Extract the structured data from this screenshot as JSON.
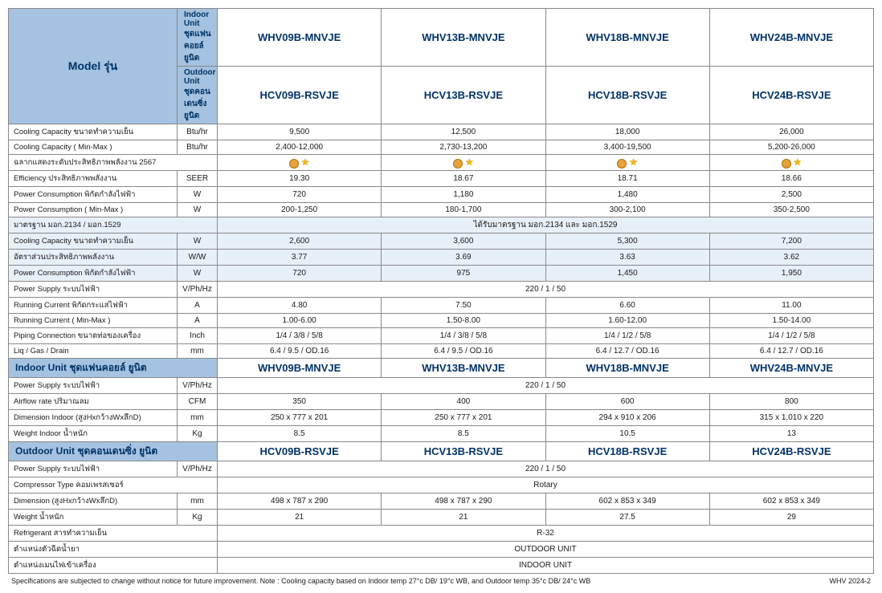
{
  "colors": {
    "header_bg": "#a5c3e0",
    "header_text": "#003366",
    "border": "#888888",
    "tint": "#e8f0f7"
  },
  "model_label": "Model รุ่น",
  "indoor_hdr_label": "Indoor Unit ชุดแฟนคอยล์ ยูนิต",
  "outdoor_hdr_label": "Outdoor Unit ชุดคอนเดนซิ่ง ยูนิต",
  "models_indoor": [
    "WHV09B-MNVJE",
    "WHV13B-MNVJE",
    "WHV18B-MNVJE",
    "WHV24B-MNVJE"
  ],
  "models_outdoor": [
    "HCV09B-RSVJE",
    "HCV13B-RSVJE",
    "HCV18B-RSVJE",
    "HCV24B-RSVJE"
  ],
  "rows_main": [
    {
      "l": "Cooling Capacity ขนาดทำความเย็น",
      "u": "Btu/hr",
      "v": [
        "9,500",
        "12,500",
        "18,000",
        "26,000"
      ]
    },
    {
      "l": "Cooling Capacity ( Min-Max )",
      "u": "Btu/hr",
      "v": [
        "2,400-12,000",
        "2,730-13,200",
        "3,400-19,500",
        "5,200-26,000"
      ]
    },
    {
      "l": "ฉลากแสดงระดับประสิทธิภาพพลังงาน 2567",
      "u": "",
      "v": [
        "★",
        "★",
        "★",
        "★"
      ],
      "special": "stars"
    },
    {
      "l": "Efficiency ประสิทธิภาพพลังงาน",
      "u": "SEER",
      "v": [
        "19.30",
        "18.67",
        "18.71",
        "18.66"
      ]
    },
    {
      "l": "Power Consumption พิกัดกำลังไฟฟ้า",
      "u": "W",
      "v": [
        "720",
        "1,180",
        "1,480",
        "2,500"
      ]
    },
    {
      "l": "Power Consumption ( Min-Max )",
      "u": "W",
      "v": [
        "200-1,250",
        "180-1,700",
        "300-2,100",
        "350-2,500"
      ]
    },
    {
      "l": "มาตรฐาน มอก.2134 / มอก.1529",
      "u": "",
      "merged": "ได้รับมาตรฐาน มอก.2134 และ มอก.1529",
      "tint": true
    },
    {
      "l": "Cooling Capacity  ขนาดทำความเย็น",
      "u": "W",
      "v": [
        "2,600",
        "3,600",
        "5,300",
        "7,200"
      ],
      "tint": true
    },
    {
      "l": "อัตราส่วนประสิทธิภาพพลังงาน",
      "u": "W/W",
      "v": [
        "3.77",
        "3.69",
        "3.63",
        "3.62"
      ],
      "tint": true
    },
    {
      "l": "Power Consumption พิกัดกำลังไฟฟ้า",
      "u": "W",
      "v": [
        "720",
        "975",
        "1,450",
        "1,950"
      ],
      "tint": true
    },
    {
      "l": "Power Supply ระบบไฟฟ้า",
      "u": "V/Ph/Hz",
      "merged": "220 / 1 / 50"
    },
    {
      "l": "Running Current  พิกัดกระแสไฟฟ้า",
      "u": "A",
      "v": [
        "4.80",
        "7.50",
        "6.60",
        "11.00"
      ]
    },
    {
      "l": "Running Current  ( Min-Max )",
      "u": "A",
      "v": [
        "1.00-6.00",
        "1.50-8.00",
        "1.60-12.00",
        "1.50-14.00"
      ]
    },
    {
      "l": "Piping Connection  ขนาดท่อของเครื่อง",
      "u": "Inch",
      "v": [
        "1/4 / 3/8 / 5/8",
        "1/4 / 3/8 / 5/8",
        "1/4 / 1/2 / 5/8",
        "1/4 / 1/2 / 5/8"
      ]
    },
    {
      "l": "Liq / Gas / Drain",
      "u": "mm",
      "v": [
        "6.4 / 9.5 / OD.16",
        "6.4 / 9.5 / OD.16",
        "6.4 / 12.7 / OD.16",
        "6.4 / 12.7 / OD.16"
      ]
    }
  ],
  "indoor_section_label": "Indoor Unit ชุดแฟนคอยล์ ยูนิต",
  "rows_indoor": [
    {
      "l": "Power Supply  ระบบไฟฟ้า",
      "u": "V/Ph/Hz",
      "merged": "220 / 1 / 50"
    },
    {
      "l": "Airflow rate  ปริมาณลม",
      "u": "CFM",
      "v": [
        "350",
        "400",
        "600",
        "800"
      ]
    },
    {
      "l": "Dimension Indoor (สูงHxกว้างWxลึกD)",
      "u": "mm",
      "v": [
        "250 x 777 x 201",
        "250 x 777 x 201",
        "294 x 910 x 206",
        "315 x 1,010 x 220"
      ]
    },
    {
      "l": "Weight Indoor น้ำหนัก",
      "u": "Kg",
      "v": [
        "8.5",
        "8.5",
        "10.5",
        "13"
      ]
    }
  ],
  "outdoor_section_label": "Outdoor Unit ชุดคอนเดนซิ่ง ยูนิต",
  "rows_outdoor": [
    {
      "l": "Power Supply ระบบไฟฟ้า",
      "u": "V/Ph/Hz",
      "merged": "220 / 1 / 50"
    },
    {
      "l": "Compressor Type คอมเพรสเซอร์",
      "u": "",
      "merged": "Rotary"
    },
    {
      "l": "Dimension (สูงHxกว้างWxลึกD)",
      "u": "mm",
      "v": [
        "498 x 787 x 290",
        "498 x 787 x 290",
        "602 x 853 x 349",
        "602 x 853 x 349"
      ]
    },
    {
      "l": "Weight  น้ำหนัก",
      "u": "Kg",
      "v": [
        "21",
        "21",
        "27.5",
        "29"
      ]
    },
    {
      "l": "Refrigerant สารทำความเย็น",
      "u": "",
      "merged": "R-32"
    },
    {
      "l": "ตำแหน่งตัวฉีดน้ำยา",
      "u": "",
      "merged": "OUTDOOR UNIT"
    },
    {
      "l": "ตำแหน่งเมนไฟเข้าเครื่อง",
      "u": "",
      "merged": "INDOOR UNIT"
    }
  ],
  "footer_left": "Specifications are subjected to change without notice for future improvement.   Note : Cooling capacity based on Indoor temp 27°c DB/ 19°c WB, and Outdoor temp 35°c DB/ 24°c WB",
  "footer_right": "WHV 2024-2"
}
